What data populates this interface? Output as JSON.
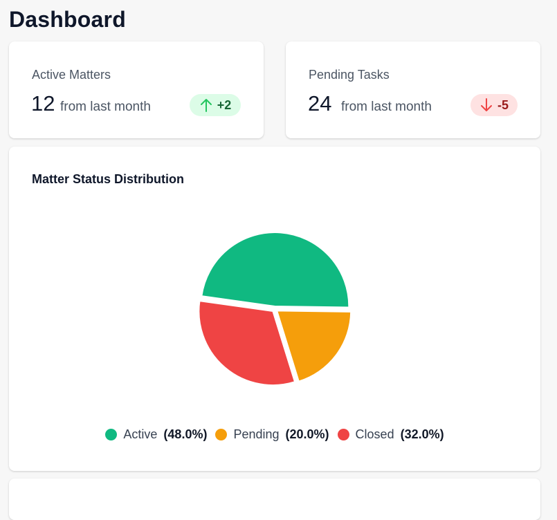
{
  "page": {
    "title": "Dashboard"
  },
  "stats": [
    {
      "label": "Active Matters",
      "value": "12",
      "sub": "from last month",
      "change": "+2",
      "trend": "up",
      "trend_color": "#22c55e"
    },
    {
      "label": "Pending Tasks",
      "value": "24",
      "sub": "from last month",
      "change": "-5",
      "trend": "down",
      "trend_color": "#ef4444"
    }
  ],
  "chart_section": {
    "title": "Matter Status Distribution"
  },
  "chart_data": {
    "type": "pie",
    "title": "Matter Status Distribution",
    "slices": [
      {
        "name": "Active",
        "value": 48.0,
        "color": "#10b981",
        "pct_label": "(48.0%)"
      },
      {
        "name": "Pending",
        "value": 20.0,
        "color": "#f59e0b",
        "pct_label": "(20.0%)"
      },
      {
        "name": "Closed",
        "value": 32.0,
        "color": "#ef4444",
        "pct_label": "(32.0%)"
      }
    ],
    "legend_position": "bottom"
  }
}
